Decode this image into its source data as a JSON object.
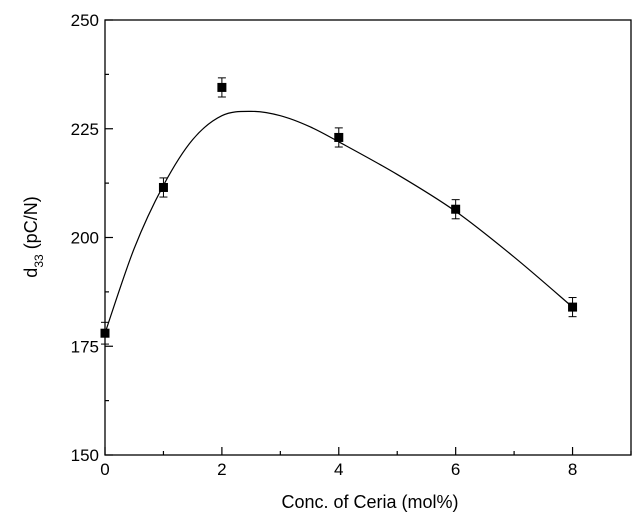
{
  "chart_data": {
    "type": "scatter",
    "xlabel": "Conc. of Ceria (mol%)",
    "ylabel_main": "d",
    "ylabel_sub": "33",
    "ylabel_unit": " (pC/N)",
    "xlim": [
      0,
      9
    ],
    "ylim": [
      150,
      250
    ],
    "xticks": [
      "0",
      "2",
      "4",
      "6",
      "8"
    ],
    "yticks": [
      "150",
      "175",
      "200",
      "225",
      "250"
    ],
    "grid": false,
    "legend": "none",
    "series": [
      {
        "marker": "square",
        "color": "#000000",
        "x": [
          0,
          1,
          2,
          4,
          6,
          8
        ],
        "y": [
          178,
          211.5,
          234.5,
          223,
          206.5,
          184
        ],
        "error": [
          2.5,
          2.2,
          2.2,
          2.2,
          2.2,
          2.2
        ]
      }
    ],
    "fit_curve": {
      "color": "#000000",
      "x": [
        0,
        0.5,
        1,
        1.5,
        2,
        2.5,
        3,
        3.5,
        4,
        5,
        6,
        7,
        8
      ],
      "y": [
        178,
        197.5,
        212,
        222.5,
        228,
        229,
        228,
        225.5,
        222,
        214.5,
        206,
        195.5,
        184
      ]
    }
  }
}
